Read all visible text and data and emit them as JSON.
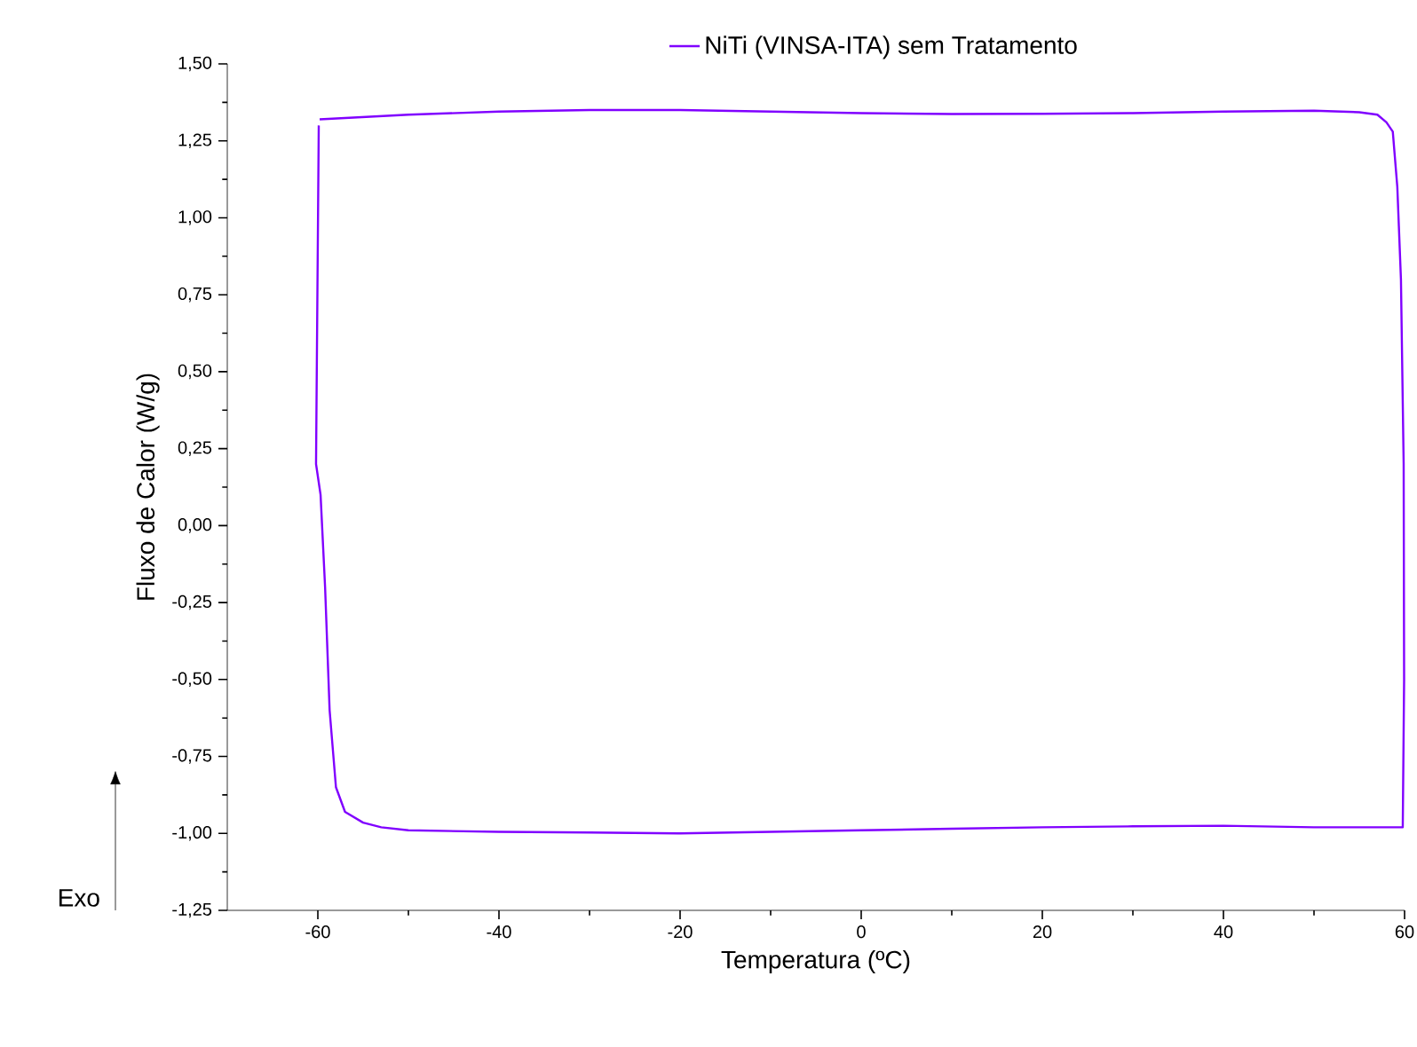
{
  "chart_data": {
    "type": "line",
    "xlabel": "Temperatura (ºC)",
    "ylabel": "Fluxo de Calor (W/g)",
    "annotations": [
      "Exo"
    ],
    "legend": "top",
    "xlim": [
      -70,
      60
    ],
    "ylim": [
      -1.25,
      1.5
    ],
    "xticks": [
      -60,
      -40,
      -20,
      0,
      20,
      40,
      60
    ],
    "yticks": [
      {
        "value": -1.25,
        "label": "-1,25"
      },
      {
        "value": -1.0,
        "label": "-1,00"
      },
      {
        "value": -0.75,
        "label": "-0,75"
      },
      {
        "value": -0.5,
        "label": "-0,50"
      },
      {
        "value": -0.25,
        "label": "-0,25"
      },
      {
        "value": 0,
        "label": "0,00"
      },
      {
        "value": 0.25,
        "label": "0,25"
      },
      {
        "value": 0.5,
        "label": "0,50"
      },
      {
        "value": 0.75,
        "label": "0,75"
      },
      {
        "value": 1.0,
        "label": "1,00"
      },
      {
        "value": 1.25,
        "label": "1,25"
      },
      {
        "value": 1.5,
        "label": "1,50"
      }
    ],
    "series": [
      {
        "name": "NiTi (VINSA-ITA) sem Tratamento",
        "color": "#8000ff",
        "x": [
          -59.8,
          -50,
          -40,
          -30,
          -20,
          -10,
          0,
          10,
          20,
          30,
          40,
          50,
          55,
          57,
          58,
          58.7,
          59.2,
          59.6,
          59.9,
          59.95,
          59.8,
          50,
          40,
          30,
          20,
          10,
          0,
          -10,
          -20,
          -30,
          -40,
          -50,
          -53,
          -55,
          -57,
          -58,
          -58.7,
          -59.2,
          -59.7,
          -60.2,
          -59.9
        ],
        "values": [
          1.32,
          1.335,
          1.345,
          1.35,
          1.35,
          1.345,
          1.34,
          1.337,
          1.338,
          1.34,
          1.345,
          1.348,
          1.343,
          1.335,
          1.31,
          1.28,
          1.1,
          0.8,
          0.2,
          -0.5,
          -0.98,
          -0.98,
          -0.975,
          -0.977,
          -0.98,
          -0.985,
          -0.99,
          -0.995,
          -1.0,
          -0.997,
          -0.995,
          -0.99,
          -0.98,
          -0.965,
          -0.93,
          -0.85,
          -0.6,
          -0.2,
          0.1,
          0.2,
          1.3
        ]
      }
    ]
  }
}
